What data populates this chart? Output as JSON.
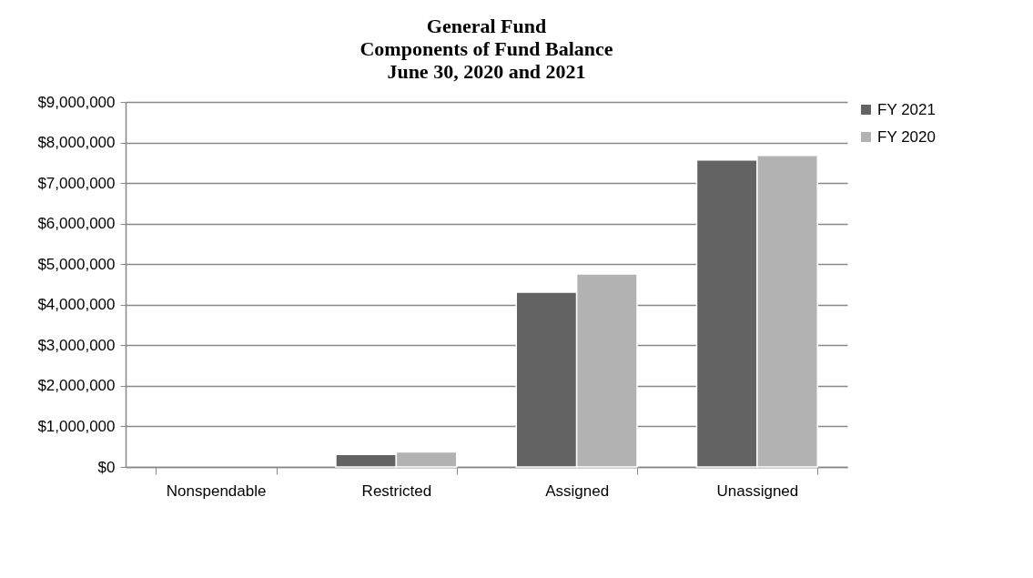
{
  "chart_data": {
    "type": "bar",
    "title": "General Fund\nComponents of Fund Balance\nJune 30, 2020 and 2021",
    "categories": [
      "Nonspendable",
      "Restricted",
      "Assigned",
      "Unassigned"
    ],
    "series": [
      {
        "name": "FY 2021",
        "color": "#636363",
        "values": [
          null,
          310000,
          4310000,
          7570000
        ]
      },
      {
        "name": "FY 2020",
        "color": "#b2b2b2",
        "values": [
          null,
          370000,
          4760000,
          7680000
        ]
      }
    ],
    "ylim": [
      0,
      9000000
    ],
    "yticks": [
      {
        "value": 0,
        "label": "$0"
      },
      {
        "value": 1000000,
        "label": "$1,000,000"
      },
      {
        "value": 2000000,
        "label": "$2,000,000"
      },
      {
        "value": 3000000,
        "label": "$3,000,000"
      },
      {
        "value": 4000000,
        "label": "$4,000,000"
      },
      {
        "value": 5000000,
        "label": "$5,000,000"
      },
      {
        "value": 6000000,
        "label": "$6,000,000"
      },
      {
        "value": 7000000,
        "label": "$7,000,000"
      },
      {
        "value": 8000000,
        "label": "$8,000,000"
      },
      {
        "value": 9000000,
        "label": "$9,000,000"
      }
    ],
    "grid": "y",
    "legend": "right"
  }
}
